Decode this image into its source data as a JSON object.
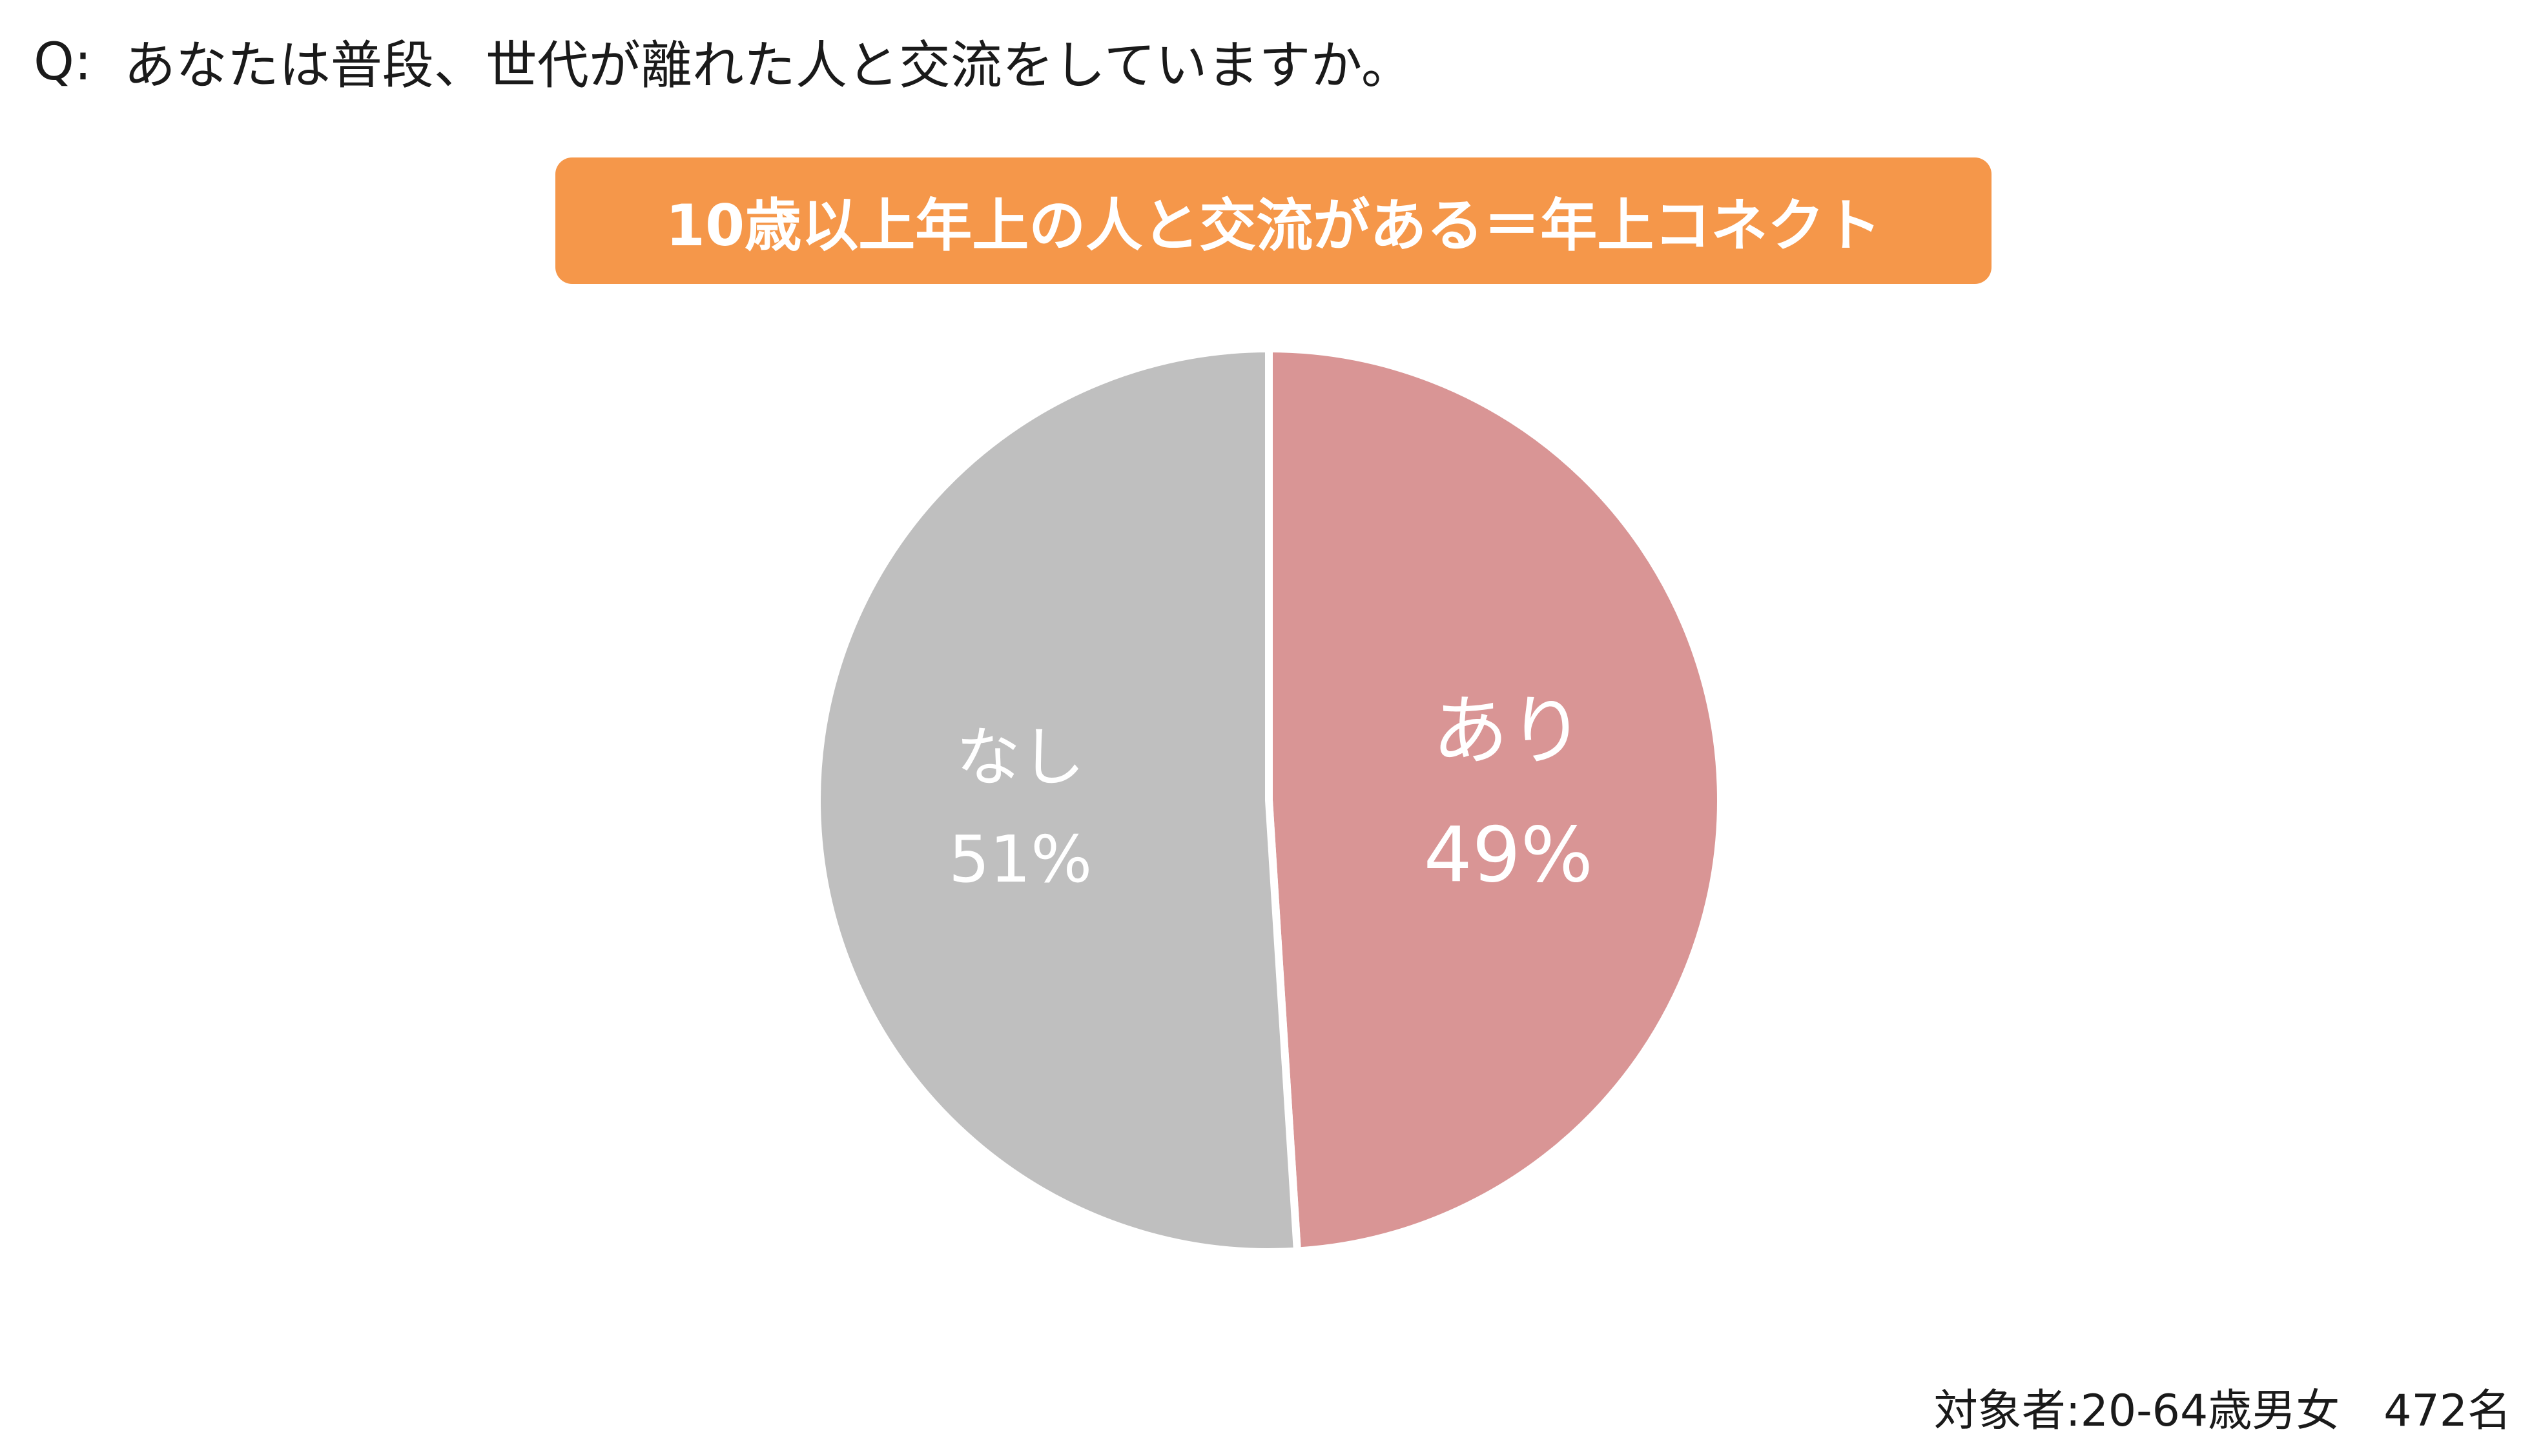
{
  "question": {
    "prefix": "Q:",
    "text": "あなたは普段、世代が離れた人と交流をしていますか。"
  },
  "banner": {
    "text": "10歳以上年上の人と交流がある＝年上コネクト"
  },
  "footer": {
    "note": "対象者:20-64歳男女　472名"
  },
  "colors": {
    "banner": "#f5974a",
    "yes": "#d99595",
    "no": "#bfbfbf"
  },
  "chart_data": {
    "type": "pie",
    "title": "10歳以上年上の人と交流がある＝年上コネクト",
    "start": "12 o'clock",
    "direction": "clockwise",
    "slices": [
      {
        "label": "あり",
        "value": 49,
        "value_label": "49%",
        "color": "#d99595"
      },
      {
        "label": "なし",
        "value": 51,
        "value_label": "51%",
        "color": "#bfbfbf"
      }
    ]
  }
}
